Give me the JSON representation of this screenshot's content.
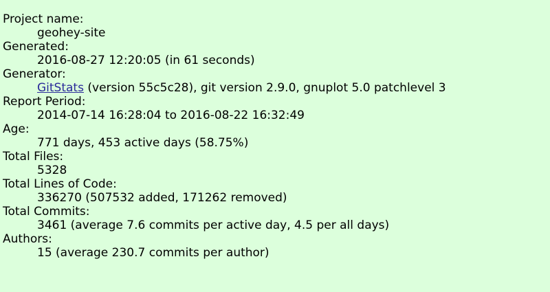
{
  "stats": {
    "project_name_label": "Project name:",
    "project_name": "geohey-site",
    "generated_label": "Generated:",
    "generated": "2016-08-27 12:20:05 (in 61 seconds)",
    "generator_label": "Generator:",
    "generator_link": "GitStats",
    "generator_rest": " (version 55c5c28), git version 2.9.0, gnuplot 5.0 patchlevel 3",
    "report_period_label": "Report Period:",
    "report_period": "2014-07-14 16:28:04 to 2016-08-22 16:32:49",
    "age_label": "Age:",
    "age": "771 days, 453 active days (58.75%)",
    "total_files_label": "Total Files:",
    "total_files": "5328",
    "total_loc_label": "Total Lines of Code:",
    "total_loc": "336270 (507532 added, 171262 removed)",
    "total_commits_label": "Total Commits:",
    "total_commits": "3461 (average 7.6 commits per active day, 4.5 per all days)",
    "authors_label": "Authors:",
    "authors": "15 (average 230.7 commits per author)"
  },
  "colors": {
    "background": "#dcffdc",
    "link": "#2a2a9a"
  }
}
